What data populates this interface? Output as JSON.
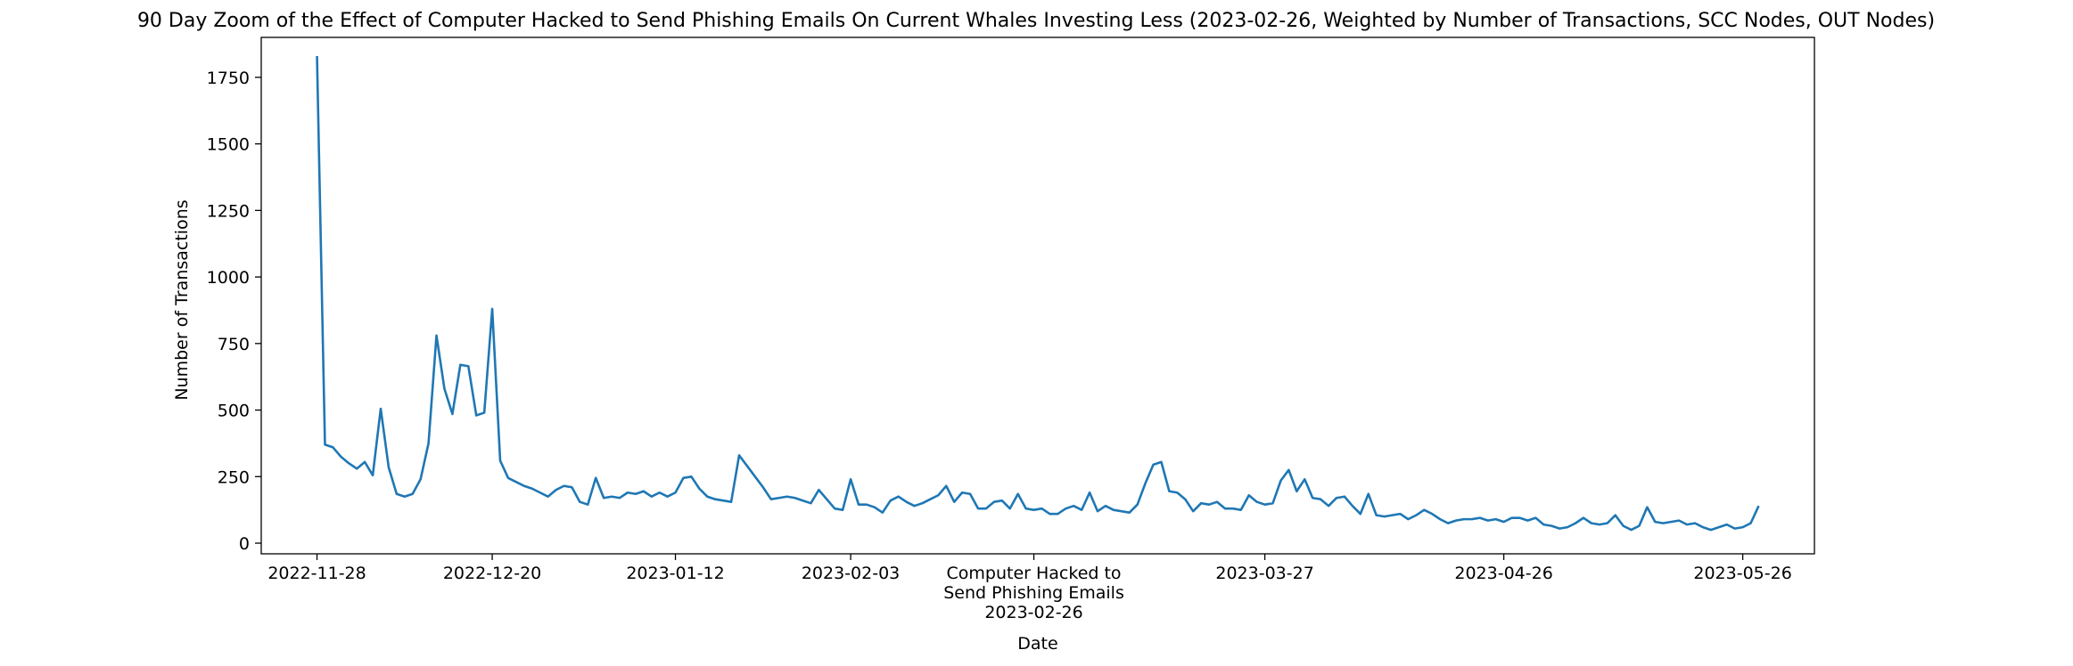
{
  "chart_data": {
    "type": "line",
    "title": "90 Day Zoom of the Effect of Computer Hacked to Send Phishing Emails On Current Whales Investing Less (2023-02-26, Weighted by Number of Transactions, SCC Nodes, OUT Nodes)",
    "xlabel": "Date",
    "ylabel": "Number of Transactions",
    "xlim": [
      "2022-11-21",
      "2023-06-04"
    ],
    "ylim": [
      -40,
      1900
    ],
    "yticks": [
      0,
      250,
      500,
      750,
      1000,
      1250,
      1500,
      1750
    ],
    "xticks": [
      {
        "date": "2022-11-28",
        "label": "2022-11-28"
      },
      {
        "date": "2022-12-20",
        "label": "2022-12-20"
      },
      {
        "date": "2023-01-12",
        "label": "2023-01-12"
      },
      {
        "date": "2023-02-03",
        "label": "2023-02-03"
      },
      {
        "date": "2023-02-26",
        "label": "Computer Hacked to\nSend Phishing Emails\n2023-02-26"
      },
      {
        "date": "2023-03-27",
        "label": "2023-03-27"
      },
      {
        "date": "2023-04-26",
        "label": "2023-04-26"
      },
      {
        "date": "2023-05-26",
        "label": "2023-05-26"
      }
    ],
    "grid": false,
    "series": [
      {
        "color": "#1f77b4",
        "start_date": "2022-11-28",
        "values": [
          1830,
          370,
          360,
          325,
          300,
          280,
          305,
          255,
          505,
          285,
          185,
          175,
          185,
          240,
          375,
          780,
          580,
          485,
          670,
          665,
          480,
          490,
          880,
          310,
          245,
          230,
          215,
          205,
          190,
          175,
          200,
          215,
          210,
          155,
          145,
          245,
          170,
          175,
          170,
          190,
          185,
          195,
          175,
          190,
          175,
          190,
          245,
          250,
          205,
          175,
          165,
          160,
          155,
          330,
          290,
          250,
          210,
          165,
          170,
          175,
          170,
          160,
          150,
          200,
          165,
          130,
          125,
          240,
          145,
          145,
          135,
          115,
          160,
          175,
          155,
          140,
          150,
          165,
          180,
          215,
          155,
          190,
          185,
          130,
          130,
          155,
          160,
          130,
          185,
          130,
          125,
          130,
          110,
          110,
          130,
          140,
          125,
          190,
          120,
          140,
          125,
          120,
          115,
          145,
          225,
          295,
          305,
          195,
          190,
          165,
          120,
          150,
          145,
          155,
          130,
          130,
          125,
          180,
          155,
          145,
          150,
          235,
          275,
          195,
          240,
          170,
          165,
          140,
          170,
          175,
          140,
          110,
          185,
          105,
          100,
          105,
          110,
          90,
          105,
          125,
          110,
          90,
          75,
          85,
          90,
          90,
          95,
          85,
          90,
          80,
          95,
          95,
          85,
          95,
          70,
          65,
          55,
          60,
          75,
          95,
          75,
          70,
          75,
          105,
          65,
          50,
          65,
          135,
          80,
          75,
          80,
          85,
          70,
          75,
          60,
          50,
          60,
          70,
          55,
          60,
          75,
          140
        ]
      }
    ]
  }
}
